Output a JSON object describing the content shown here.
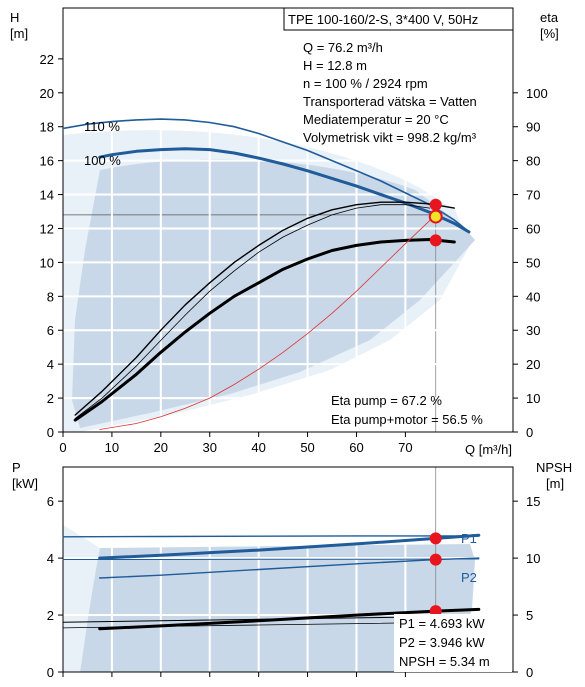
{
  "chart_data": [
    {
      "type": "line",
      "title": "TPE 100-160/2-S, 3*400 V, 50Hz",
      "xlabel": "Q [m³/h]",
      "ylabel_left": "H",
      "ylabel_left_unit": "[m]",
      "ylabel_right": "eta",
      "ylabel_right_unit": "[%]",
      "xlim": [
        0,
        92
      ],
      "ylim_left": [
        0,
        25
      ],
      "ylim_right": [
        0,
        125
      ],
      "x_ticks": [
        0,
        10,
        20,
        30,
        40,
        50,
        60,
        70
      ],
      "y_left_ticks": [
        0,
        2,
        4,
        6,
        8,
        10,
        12,
        14,
        16,
        18,
        20,
        22
      ],
      "y_right_ticks": [
        0,
        10,
        20,
        30,
        40,
        50,
        60,
        70,
        80,
        90,
        100
      ],
      "info_lines": [
        "Q = 76.2 m³/h",
        "H = 12.8 m",
        "n = 100 % / 2924 rpm",
        "Transporterad vätska = Vatten",
        "Mediatemperatur = 20 °C",
        "Volymetrisk vikt = 998.2 kg/m³"
      ],
      "eta_lines": [
        "Eta pump = 67.2 %",
        "Eta pump+motor = 56.5 %"
      ],
      "curve_labels": [
        "110 %",
        "100 %"
      ],
      "series": [
        {
          "name": "110 %",
          "axis": "left",
          "color": "#1f5c99",
          "width": 1.6,
          "x": [
            0,
            5,
            10,
            15,
            20,
            25,
            30,
            35,
            40,
            45,
            50,
            55,
            60,
            65,
            70,
            75,
            80,
            83
          ],
          "values": [
            17.9,
            18.15,
            18.3,
            18.4,
            18.45,
            18.4,
            18.25,
            18.0,
            17.6,
            17.1,
            16.6,
            16.0,
            15.4,
            14.8,
            14.1,
            13.4,
            12.5,
            11.8
          ]
        },
        {
          "name": "100 %",
          "axis": "left",
          "color": "#1f5c99",
          "width": 3,
          "x": [
            7.5,
            10,
            15,
            20,
            25,
            30,
            35,
            40,
            45,
            50,
            55,
            60,
            65,
            70,
            75,
            80,
            83
          ],
          "values": [
            16.2,
            16.35,
            16.55,
            16.65,
            16.7,
            16.65,
            16.45,
            16.15,
            15.8,
            15.4,
            14.95,
            14.5,
            14.0,
            13.5,
            12.95,
            12.3,
            11.8
          ]
        },
        {
          "name": "",
          "axis": "left",
          "color": "#000000",
          "width": 1.4,
          "x": [
            2.5,
            8,
            15,
            20,
            25,
            30,
            35,
            40,
            45,
            50,
            55,
            60,
            65,
            70,
            75,
            80
          ],
          "values": [
            1.0,
            2.4,
            4.4,
            6.0,
            7.5,
            8.8,
            10.0,
            11.0,
            11.9,
            12.6,
            13.1,
            13.4,
            13.55,
            13.55,
            13.45,
            13.2
          ]
        },
        {
          "name": "",
          "axis": "left",
          "color": "#000000",
          "width": 0.8,
          "x": [
            2.5,
            8,
            15,
            20,
            25,
            30,
            35,
            40,
            45,
            50,
            55,
            60,
            65,
            70,
            75
          ],
          "values": [
            0.8,
            2.0,
            3.9,
            5.4,
            6.9,
            8.3,
            9.5,
            10.6,
            11.5,
            12.2,
            12.8,
            13.2,
            13.4,
            13.4,
            13.2
          ]
        },
        {
          "name": "",
          "axis": "left",
          "color": "#000000",
          "width": 3,
          "x": [
            2.5,
            8,
            15,
            20,
            25,
            30,
            35,
            40,
            45,
            50,
            55,
            60,
            65,
            70,
            75,
            80
          ],
          "values": [
            0.7,
            1.8,
            3.4,
            4.7,
            5.9,
            7.0,
            8.0,
            8.8,
            9.6,
            10.2,
            10.7,
            11.0,
            11.2,
            11.3,
            11.35,
            11.2
          ]
        },
        {
          "name": "",
          "axis": "left",
          "color": "#e03030",
          "width": 0.8,
          "x": [
            7.5,
            15,
            20,
            25,
            30,
            35,
            40,
            45,
            50,
            55,
            60,
            65,
            70,
            76.2
          ],
          "values": [
            0.15,
            0.5,
            0.9,
            1.4,
            2.0,
            2.8,
            3.7,
            4.7,
            5.8,
            7.0,
            8.3,
            9.7,
            11.1,
            12.8
          ]
        }
      ],
      "points": [
        {
          "x": 76.2,
          "y": 13.4,
          "color": "#e8141e",
          "ring": false
        },
        {
          "x": 76.2,
          "y": 12.7,
          "color": "#f2e32a",
          "ring": true
        },
        {
          "x": 76.2,
          "y": 11.3,
          "color": "#e8141e",
          "ring": false
        }
      ],
      "operating_point": {
        "q": 76.2,
        "h": 12.8
      }
    },
    {
      "type": "line",
      "ylabel_left": "P",
      "ylabel_left_unit": "[kW]",
      "ylabel_right": "NPSH",
      "ylabel_right_unit": "[m]",
      "xlim": [
        0,
        92
      ],
      "ylim_left": [
        0,
        7.2
      ],
      "ylim_right": [
        0,
        18
      ],
      "y_left_ticks": [
        0,
        2,
        4,
        6
      ],
      "y_right_ticks": [
        0,
        5,
        10,
        15
      ],
      "values_text": [
        "P1 = 4.693 kW",
        "P2 = 3.946 kW",
        "NPSH = 5.34 m"
      ],
      "curve_labels": [
        "P1",
        "P2"
      ],
      "series": [
        {
          "name": "P1",
          "axis": "left",
          "color": "#1f5c99",
          "width": 3,
          "x": [
            7.5,
            20,
            40,
            60,
            76.2,
            85
          ],
          "values": [
            4.0,
            4.1,
            4.28,
            4.5,
            4.693,
            4.8
          ]
        },
        {
          "name": "",
          "axis": "left",
          "color": "#1f5c99",
          "width": 1.4,
          "x": [
            0,
            20,
            40,
            60,
            80,
            85
          ],
          "values": [
            4.75,
            4.76,
            4.77,
            4.78,
            4.78,
            4.78
          ]
        },
        {
          "name": "P2",
          "axis": "left",
          "color": "#1f5c99",
          "width": 1.4,
          "x": [
            7.5,
            20,
            40,
            60,
            76.2,
            85
          ],
          "values": [
            3.3,
            3.4,
            3.6,
            3.8,
            3.946,
            4.0
          ]
        },
        {
          "name": "",
          "axis": "left",
          "color": "#1f5c99",
          "width": 1.0,
          "x": [
            0,
            20,
            40,
            60,
            80,
            85
          ],
          "values": [
            3.95,
            3.95,
            3.96,
            3.96,
            3.97,
            3.97
          ]
        },
        {
          "name": "NPSH",
          "axis": "left",
          "color": "#000000",
          "width": 3,
          "x": [
            7.5,
            20,
            40,
            60,
            76.2,
            85
          ],
          "values": [
            1.52,
            1.62,
            1.8,
            2.0,
            2.14,
            2.2
          ]
        },
        {
          "name": "",
          "axis": "left",
          "color": "#000000",
          "width": 1.0,
          "x": [
            0,
            20,
            40,
            60,
            80,
            85
          ],
          "values": [
            1.75,
            1.8,
            1.85,
            1.9,
            1.95,
            1.95
          ]
        },
        {
          "name": "",
          "axis": "left",
          "color": "#000000",
          "width": 0.8,
          "x": [
            0,
            20,
            40,
            60,
            80,
            85
          ],
          "values": [
            1.55,
            1.6,
            1.65,
            1.7,
            1.75,
            1.75
          ]
        }
      ],
      "points": [
        {
          "x": 76.2,
          "y": 4.693,
          "color": "#e8141e",
          "ring": false
        },
        {
          "x": 76.2,
          "y": 3.946,
          "color": "#e8141e",
          "ring": false
        },
        {
          "x": 76.2,
          "y": 2.14,
          "color": "#e8141e",
          "ring": false
        }
      ]
    }
  ]
}
